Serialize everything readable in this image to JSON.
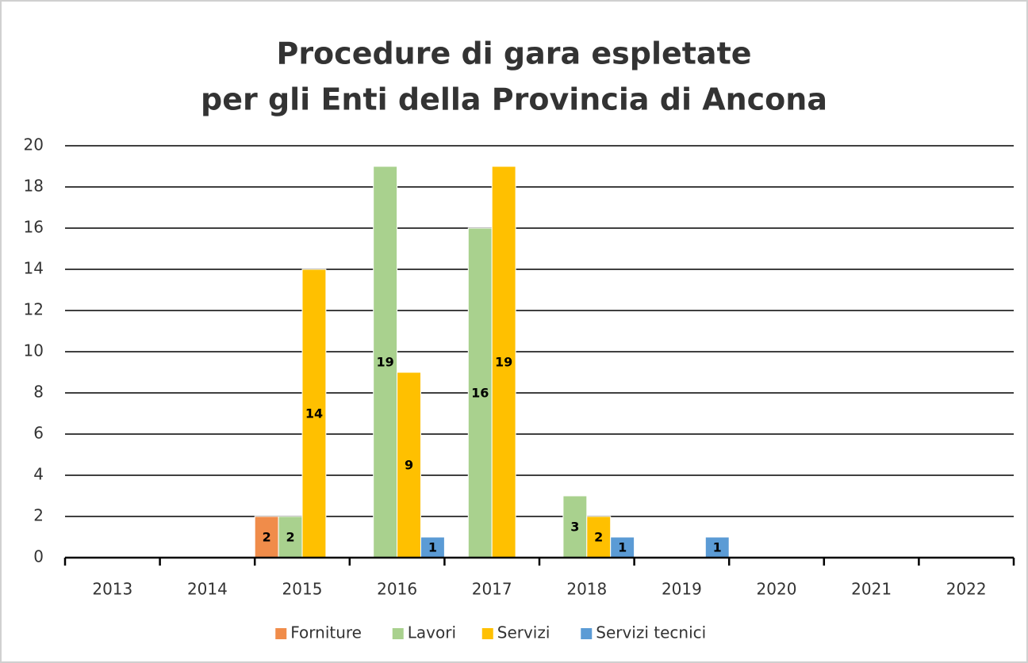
{
  "chart_data": {
    "type": "bar",
    "title": [
      "Procedure di gara espletate",
      "per gli Enti della Provincia di Ancona"
    ],
    "categories": [
      "2013",
      "2014",
      "2015",
      "2016",
      "2017",
      "2018",
      "2019",
      "2020",
      "2021",
      "2022"
    ],
    "series": [
      {
        "name": "Forniture",
        "color": "#f08c4a",
        "values": [
          null,
          null,
          2,
          null,
          null,
          null,
          null,
          null,
          null,
          null
        ]
      },
      {
        "name": "Lavori",
        "color": "#a9d18e",
        "values": [
          null,
          null,
          2,
          19,
          16,
          3,
          null,
          null,
          null,
          null
        ]
      },
      {
        "name": "Servizi",
        "color": "#ffc000",
        "values": [
          null,
          null,
          14,
          9,
          19,
          2,
          null,
          null,
          null,
          null
        ]
      },
      {
        "name": "Servizi tecnici",
        "color": "#5b9bd5",
        "values": [
          null,
          null,
          null,
          1,
          null,
          1,
          1,
          null,
          null,
          null
        ]
      }
    ],
    "ylim": [
      0,
      20
    ],
    "yticks": [
      0,
      2,
      4,
      6,
      8,
      10,
      12,
      14,
      16,
      18,
      20
    ],
    "grid": true,
    "legend": "bottom"
  }
}
